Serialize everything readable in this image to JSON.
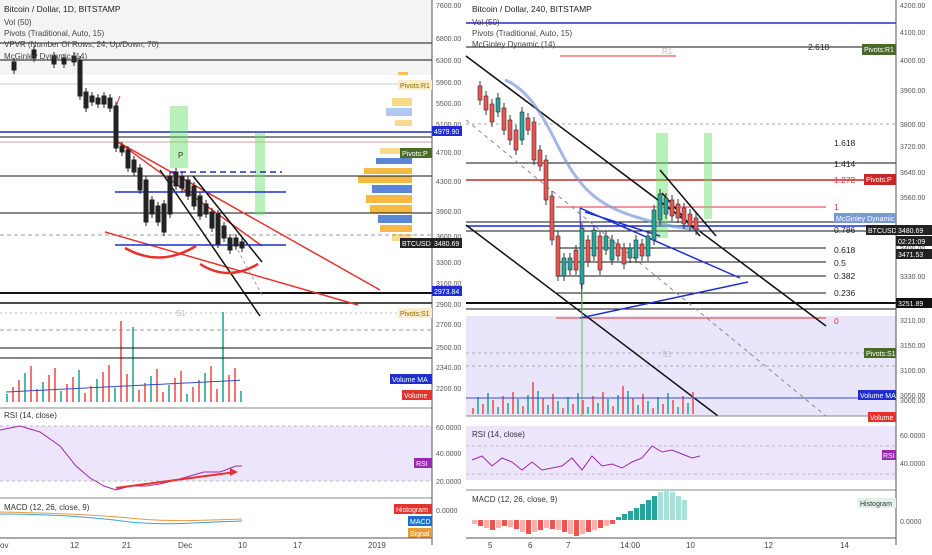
{
  "left": {
    "header": {
      "title": "Bitcoin / Dollar, 1D, BITSTAMP",
      "vol": "Vol (50)",
      "pivots": "Pivots (Traditional, Auto, 15)",
      "vpvr": "VPVR (Number Of Rows, 24, Up/Down, 70)",
      "mcginley": "McGinley Dynamic (14)"
    },
    "price_axis": [
      "7600.00",
      "6800.00",
      "6300.00",
      "5900.00",
      "5500.00",
      "5100.00",
      "4700.00",
      "4300.00",
      "3900.00",
      "3600.00",
      "3300.00",
      "3100.00",
      "2900.00",
      "2700.00",
      "2500.00",
      "2340.00",
      "2200.00"
    ],
    "price_tags": {
      "r1": "Pivots:R1",
      "level": "4979.90",
      "p": "Pivots:P",
      "btc": "BTCUSD",
      "btc_value": "3480.69",
      "support": "2973.84",
      "s1": "Pivots:S1"
    },
    "volume_tags": {
      "ma": "Volume MA",
      "vol": "Volume"
    },
    "x_axis": [
      "ov",
      "12",
      "21",
      "Dec",
      "10",
      "17",
      "2019"
    ],
    "rsi": {
      "title": "RSI (14, close)",
      "axis": [
        "60.0000",
        "40.0000",
        "20.0000"
      ],
      "tag": "RSI"
    },
    "macd": {
      "title": "MACD (12, 26, close, 9)",
      "axis": [
        "0.0000"
      ],
      "tag_hist": "Histogram",
      "tag_macd": "MACD",
      "tag_signal": "Signal"
    }
  },
  "right": {
    "header": {
      "title": "Bitcoin / Dollar, 240, BITSTAMP",
      "vol": "Vol (50)",
      "pivots": "Pivots (Traditional, Auto, 15)",
      "mcginley": "McGinley Dynamic (14)"
    },
    "price_axis": [
      "4200.00",
      "4100.00",
      "4000.00",
      "3900.00",
      "3800.00",
      "3720.00",
      "3640.00",
      "3560.00",
      "3400.00",
      "3330.00",
      "3210.00",
      "3150.00",
      "3100.00",
      "3050.00",
      "3000.00",
      "2950.00"
    ],
    "fib_levels": [
      "2.618",
      "1.618",
      "1.414",
      "1.272",
      "1",
      "0.786",
      "0.618",
      "0.5",
      "0.382",
      "0.236",
      "0"
    ],
    "pivot_labels": {
      "r1": "R1",
      "s1": "S1"
    },
    "price_tags": {
      "r1": "Pivots:R1",
      "p": "Pivots:P",
      "mcg": "McGinley Dynamic",
      "btc": "BTCUSD",
      "btc_value": "3480.69",
      "countdown": "02:21:09",
      "value2": "3471.53",
      "support": "3251.89",
      "s1": "Pivots:S1"
    },
    "volume_tags": {
      "ma": "Volume MA",
      "vol": "Volume"
    },
    "x_axis": [
      "5",
      "6",
      "7",
      "14:00",
      "10",
      "12",
      "14"
    ],
    "rsi": {
      "title": "RSI (14, close)",
      "axis": [
        "60.0000",
        "40.0000"
      ],
      "tag": "RSI"
    },
    "macd": {
      "title": "MACD (12, 26, close, 9)",
      "axis": [
        "0.0000"
      ],
      "tag_hist": "Histogram"
    }
  },
  "colors": {
    "up": "#26a69a",
    "down": "#ef5350",
    "candle_up": "#2b2b2b",
    "candle_down": "#222222",
    "trend_red": "#e5322d",
    "pivot_blue": "#1e2fd0",
    "vpvr": "#f5b944",
    "vpvr_blue": "#5b86d8",
    "rsi_bg": "#ece5fb",
    "rsi_line": "#9c27b0",
    "green_box": "#66dd66",
    "mcg_line": "#7b98d6"
  }
}
